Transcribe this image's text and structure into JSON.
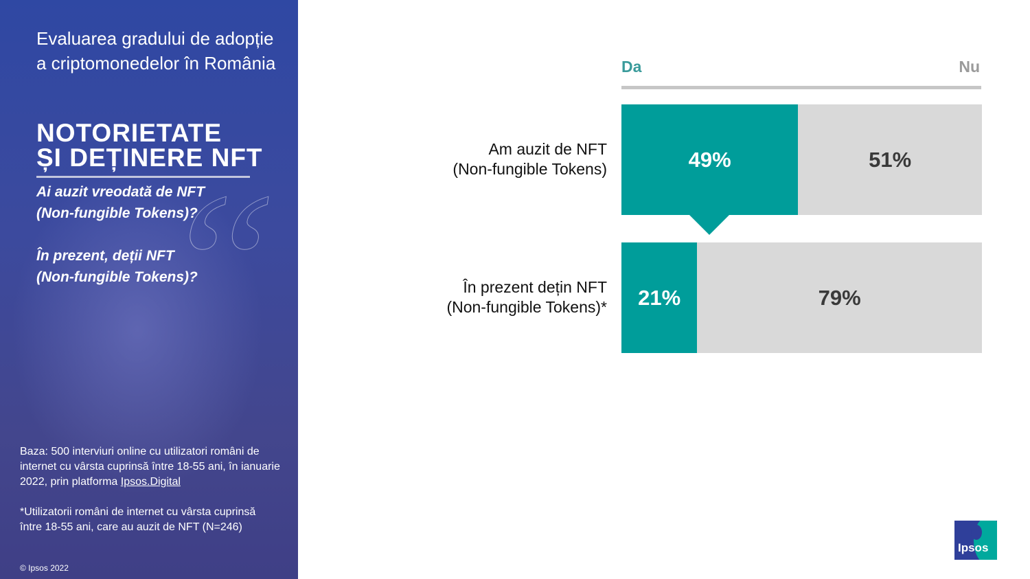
{
  "sidebar": {
    "intro": "Evaluarea gradului de adopție a criptomonedelor în România",
    "headline": "NOTORIETATE\nȘI DEȚINERE NFT",
    "question_1": "Ai auzit vreodată de NFT\n(Non-fungible Tokens)?",
    "question_2": "În prezent, deții NFT\n(Non-fungible Tokens)?",
    "base_note_prefix": "Baza: 500 interviuri online cu utilizatori români de internet cu vârsta cuprinsă între 18-55 ani, în ianuarie 2022, prin platforma ",
    "base_note_link": "Ipsos.Digital",
    "footnote": "*Utilizatorii români de internet cu vârsta cuprinsă\nîntre 18-55 ani, care au auzit de NFT (N=246)",
    "copyright": "© Ipsos 2022",
    "quote_glyph": "“"
  },
  "logo": {
    "text": "Ipsos",
    "colors": {
      "primary": "#2f3f9a",
      "accent": "#00a99d"
    }
  },
  "colors": {
    "yes": "#009d9a",
    "no": "#d9d9d9",
    "legend_yes": "#3a9b9b",
    "legend_no": "#9a9a9a"
  },
  "chart_data": {
    "type": "bar",
    "orientation": "horizontal",
    "stacked": true,
    "percent_scale": true,
    "legend_position": "top",
    "categories": [
      "Am auzit de NFT\n(Non-fungible Tokens)",
      "În prezent dețin NFT\n(Non-fungible Tokens)*"
    ],
    "series": [
      {
        "name": "Da",
        "values": [
          49,
          21
        ],
        "labels": [
          "49%",
          "21%"
        ]
      },
      {
        "name": "Nu",
        "values": [
          51,
          79
        ],
        "labels": [
          "51%",
          "79%"
        ]
      }
    ]
  }
}
